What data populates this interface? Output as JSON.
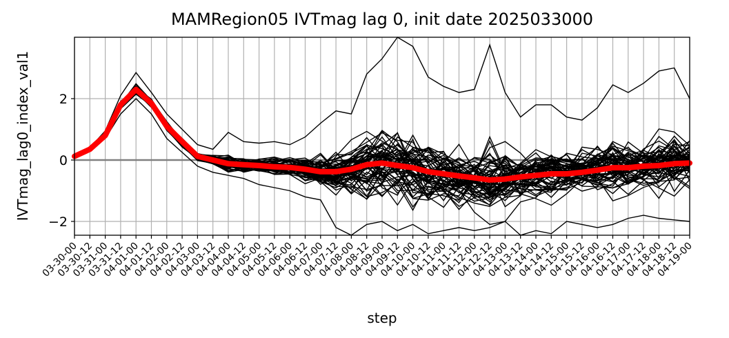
{
  "chart_data": {
    "type": "line",
    "title": "MAMRegion05 IVTmag lag 0, init date 2025033000",
    "xlabel": "step",
    "ylabel": "IVTmag_lag0_index_val1",
    "ylim": [
      -2.45,
      4.0
    ],
    "yticks": [
      -2,
      0,
      2
    ],
    "grid": true,
    "zero_line_color": "#808080",
    "member_color": "#000000",
    "mean_color": "#ff0000",
    "categories": [
      "03-30-00",
      "03-30-12",
      "03-31-00",
      "03-31-12",
      "04-01-00",
      "04-01-12",
      "04-02-00",
      "04-02-12",
      "04-03-00",
      "04-03-12",
      "04-04-00",
      "04-04-12",
      "04-05-00",
      "04-05-12",
      "04-06-00",
      "04-06-12",
      "04-07-00",
      "04-07-12",
      "04-08-00",
      "04-08-12",
      "04-09-00",
      "04-09-12",
      "04-10-00",
      "04-10-12",
      "04-11-00",
      "04-11-12",
      "04-12-00",
      "04-12-12",
      "04-13-00",
      "04-13-12",
      "04-14-00",
      "04-14-12",
      "04-15-00",
      "04-15-12",
      "04-16-00",
      "04-16-12",
      "04-17-00",
      "04-17-12",
      "04-18-00",
      "04-18-12",
      "04-19-00"
    ],
    "mean": [
      0.12,
      0.35,
      0.8,
      1.8,
      2.3,
      1.85,
      1.1,
      0.6,
      0.12,
      0.0,
      -0.12,
      -0.15,
      -0.18,
      -0.22,
      -0.24,
      -0.3,
      -0.38,
      -0.38,
      -0.3,
      -0.15,
      -0.1,
      -0.18,
      -0.25,
      -0.38,
      -0.45,
      -0.52,
      -0.58,
      -0.65,
      -0.62,
      -0.55,
      -0.5,
      -0.45,
      -0.45,
      -0.4,
      -0.33,
      -0.25,
      -0.25,
      -0.2,
      -0.18,
      -0.12,
      -0.1
    ],
    "members_upper": [
      0.14,
      0.4,
      0.95,
      2.1,
      2.85,
      2.2,
      1.5,
      1.0,
      0.5,
      0.35,
      0.9,
      0.6,
      0.55,
      0.6,
      0.5,
      0.75,
      1.2,
      1.6,
      1.5,
      2.8,
      3.3,
      4.0,
      3.7,
      2.7,
      2.4,
      2.2,
      2.3,
      3.75,
      2.2,
      1.4,
      1.8,
      1.8,
      1.4,
      1.3,
      1.7,
      2.45,
      2.2,
      2.5,
      2.9,
      3.0,
      2.0
    ],
    "members_lower": [
      0.1,
      0.3,
      0.7,
      1.5,
      2.0,
      1.5,
      0.7,
      0.25,
      -0.2,
      -0.4,
      -0.5,
      -0.6,
      -0.8,
      -0.9,
      -1.0,
      -1.2,
      -1.3,
      -2.2,
      -2.45,
      -2.1,
      -2.0,
      -2.3,
      -2.1,
      -2.4,
      -2.3,
      -2.2,
      -2.3,
      -2.2,
      -2.0,
      -2.45,
      -2.3,
      -2.4,
      -2.0,
      -2.1,
      -2.2,
      -2.1,
      -1.9,
      -1.8,
      -1.9,
      -1.95,
      -2.0
    ]
  }
}
